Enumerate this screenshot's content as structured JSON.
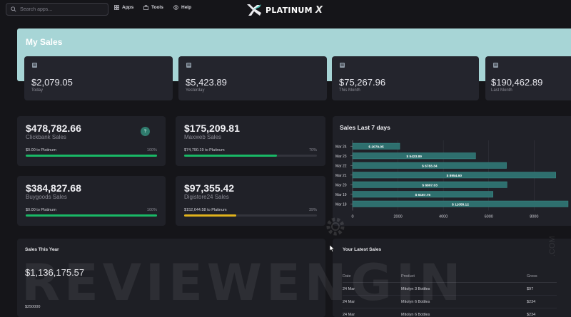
{
  "topbar": {
    "search_placeholder": "Search apps...",
    "nav": [
      {
        "label": "Apps",
        "icon": "grid-icon"
      },
      {
        "label": "Tools",
        "icon": "toolbox-icon"
      },
      {
        "label": "Help",
        "icon": "help-circle-icon"
      }
    ],
    "logo": {
      "text": "PLATINUM",
      "mark": "X"
    }
  },
  "my_sales": {
    "title": "My Sales",
    "cards": [
      {
        "value": "$2,079.05",
        "label": "Today",
        "icon": "database-icon"
      },
      {
        "value": "$5,423.89",
        "label": "Yesterday",
        "icon": "database-icon"
      },
      {
        "value": "$75,267.96",
        "label": "This Month",
        "icon": "database-icon"
      },
      {
        "value": "$190,462.89",
        "label": "Last Month",
        "icon": "database-icon"
      }
    ]
  },
  "platforms": [
    {
      "amount": "$478,782.66",
      "name": "Clickbank Sales",
      "sub": "$0.00 to Platinum",
      "pct": "100%",
      "progress": 1.0,
      "color": "#19b866",
      "help": "?"
    },
    {
      "amount": "$175,209.81",
      "name": "Maxweb Sales",
      "sub": "$74,790.19 to Platinum",
      "pct": "70%",
      "progress": 0.7,
      "color": "#19b866"
    },
    {
      "amount": "$384,827.68",
      "name": "Buygoods Sales",
      "sub": "$0.00 to Platinum",
      "pct": "100%",
      "progress": 1.0,
      "color": "#19b866"
    },
    {
      "amount": "$97,355.42",
      "name": "Digistore24 Sales",
      "sub": "$152,644.58 to Platinum",
      "pct": "39%",
      "progress": 0.39,
      "color": "#e0b21c"
    }
  ],
  "chart_data": {
    "type": "bar",
    "orientation": "horizontal",
    "title": "Sales Last 7 days",
    "categories": [
      "Mar 24",
      "Mar 23",
      "Mar 22",
      "Mar 21",
      "Mar 20",
      "Mar 19",
      "Mar 18"
    ],
    "values": [
      2079.05,
      5423.89,
      6783.34,
      8954.6,
      6807.03,
      6187.75,
      11058.12
    ],
    "data_labels": [
      "$ 2079.05",
      "$ 5423.89",
      "$ 6783.34",
      "$ 8954.60",
      "$ 6807.03",
      "$ 6187.75",
      "$ 11058.12"
    ],
    "x_ticks": [
      "0",
      "2000",
      "4000",
      "6000",
      "8000"
    ],
    "xlim": [
      0,
      9500
    ],
    "grid": true,
    "bar_color": "#2e6f6e"
  },
  "sales_year": {
    "title": "Sales This Year",
    "total": "$1,136,175.57",
    "tick": "$250000"
  },
  "latest_sales": {
    "title": "Your Latest Sales",
    "headers": [
      "Date",
      "Product",
      "Gross"
    ],
    "rows": [
      [
        "24 Mar",
        "Mitolyn 3 Bottles",
        "$97"
      ],
      [
        "24 Mar",
        "Mitolyn 6 Bottles",
        "$234"
      ],
      [
        "24 Mar",
        "Mitolyn 6 Bottles",
        "$234"
      ]
    ]
  },
  "watermark": {
    "text": "REVIEWENGIN",
    "suffix": ".COM"
  }
}
